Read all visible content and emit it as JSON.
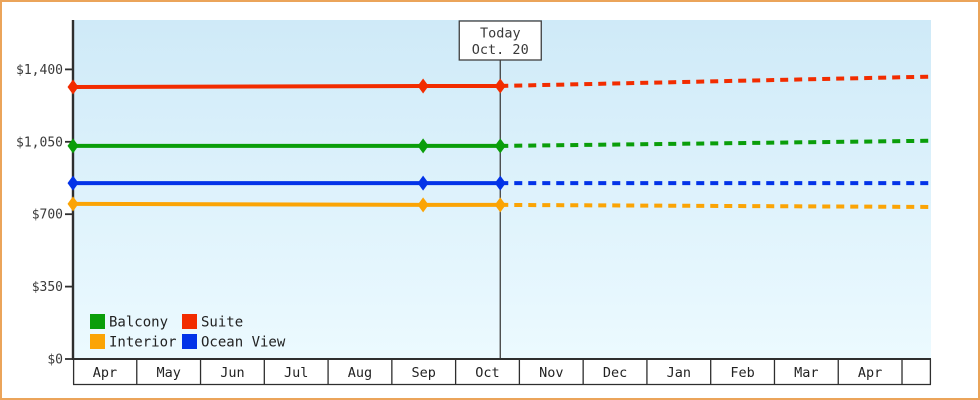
{
  "chart_data": {
    "type": "line",
    "title": "",
    "xlabel": "",
    "ylabel": "",
    "currency": "USD",
    "ylim": [
      0,
      1400
    ],
    "y_ticks": [
      {
        "value": 0,
        "label": "$0"
      },
      {
        "value": 350,
        "label": "$350"
      },
      {
        "value": 700,
        "label": "$700"
      },
      {
        "value": 1050,
        "label": "$1,050"
      },
      {
        "value": 1400,
        "label": "$1,400"
      }
    ],
    "x_month_labels": [
      "Apr",
      "May",
      "Jun",
      "Jul",
      "Aug",
      "Sep",
      "Oct",
      "Nov",
      "Dec",
      "Jan",
      "Feb",
      "Mar",
      "Apr"
    ],
    "x_axis_total_months": 13.45,
    "today_annotation": {
      "line1": "Today",
      "line2": "Oct. 20",
      "month_position": 6.7
    },
    "series": [
      {
        "name": "Suite",
        "color": "#f22c00",
        "observed": {
          "x": [
            0,
            5.49,
            6.7
          ],
          "values": [
            1315,
            1320,
            1320
          ]
        },
        "projected": {
          "x": [
            6.7,
            13.45
          ],
          "values": [
            1320,
            1365
          ]
        }
      },
      {
        "name": "Balcony",
        "color": "#0a9e0a",
        "observed": {
          "x": [
            0,
            5.49,
            6.7
          ],
          "values": [
            1030,
            1030,
            1030
          ]
        },
        "projected": {
          "x": [
            6.7,
            13.45
          ],
          "values": [
            1030,
            1055
          ]
        }
      },
      {
        "name": "Ocean View",
        "color": "#0333e8",
        "observed": {
          "x": [
            0,
            5.49,
            6.7
          ],
          "values": [
            850,
            850,
            850
          ]
        },
        "projected": {
          "x": [
            6.7,
            13.45
          ],
          "values": [
            850,
            850
          ]
        }
      },
      {
        "name": "Interior",
        "color": "#fba405",
        "observed": {
          "x": [
            0,
            5.49,
            6.7
          ],
          "values": [
            750,
            745,
            745
          ]
        },
        "projected": {
          "x": [
            6.7,
            13.45
          ],
          "values": [
            745,
            735
          ]
        }
      }
    ],
    "legend": {
      "position": "bottom-left",
      "rows": [
        [
          {
            "label": "Balcony",
            "color": "#0a9e0a"
          },
          {
            "label": "Suite",
            "color": "#f22c00"
          }
        ],
        [
          {
            "label": "Interior",
            "color": "#fba405"
          },
          {
            "label": "Ocean View",
            "color": "#0333e8"
          }
        ]
      ]
    },
    "style": {
      "plot_bg_top": "#cfeaf8",
      "plot_bg_bottom": "#ecfaff",
      "axis_color": "#2e2e2e",
      "grid": false,
      "text_color": "#3a3a3a",
      "month_text_color": "#222222",
      "frame_border_color": "#eba45a",
      "today_line_color": "#3f3f3f"
    }
  }
}
